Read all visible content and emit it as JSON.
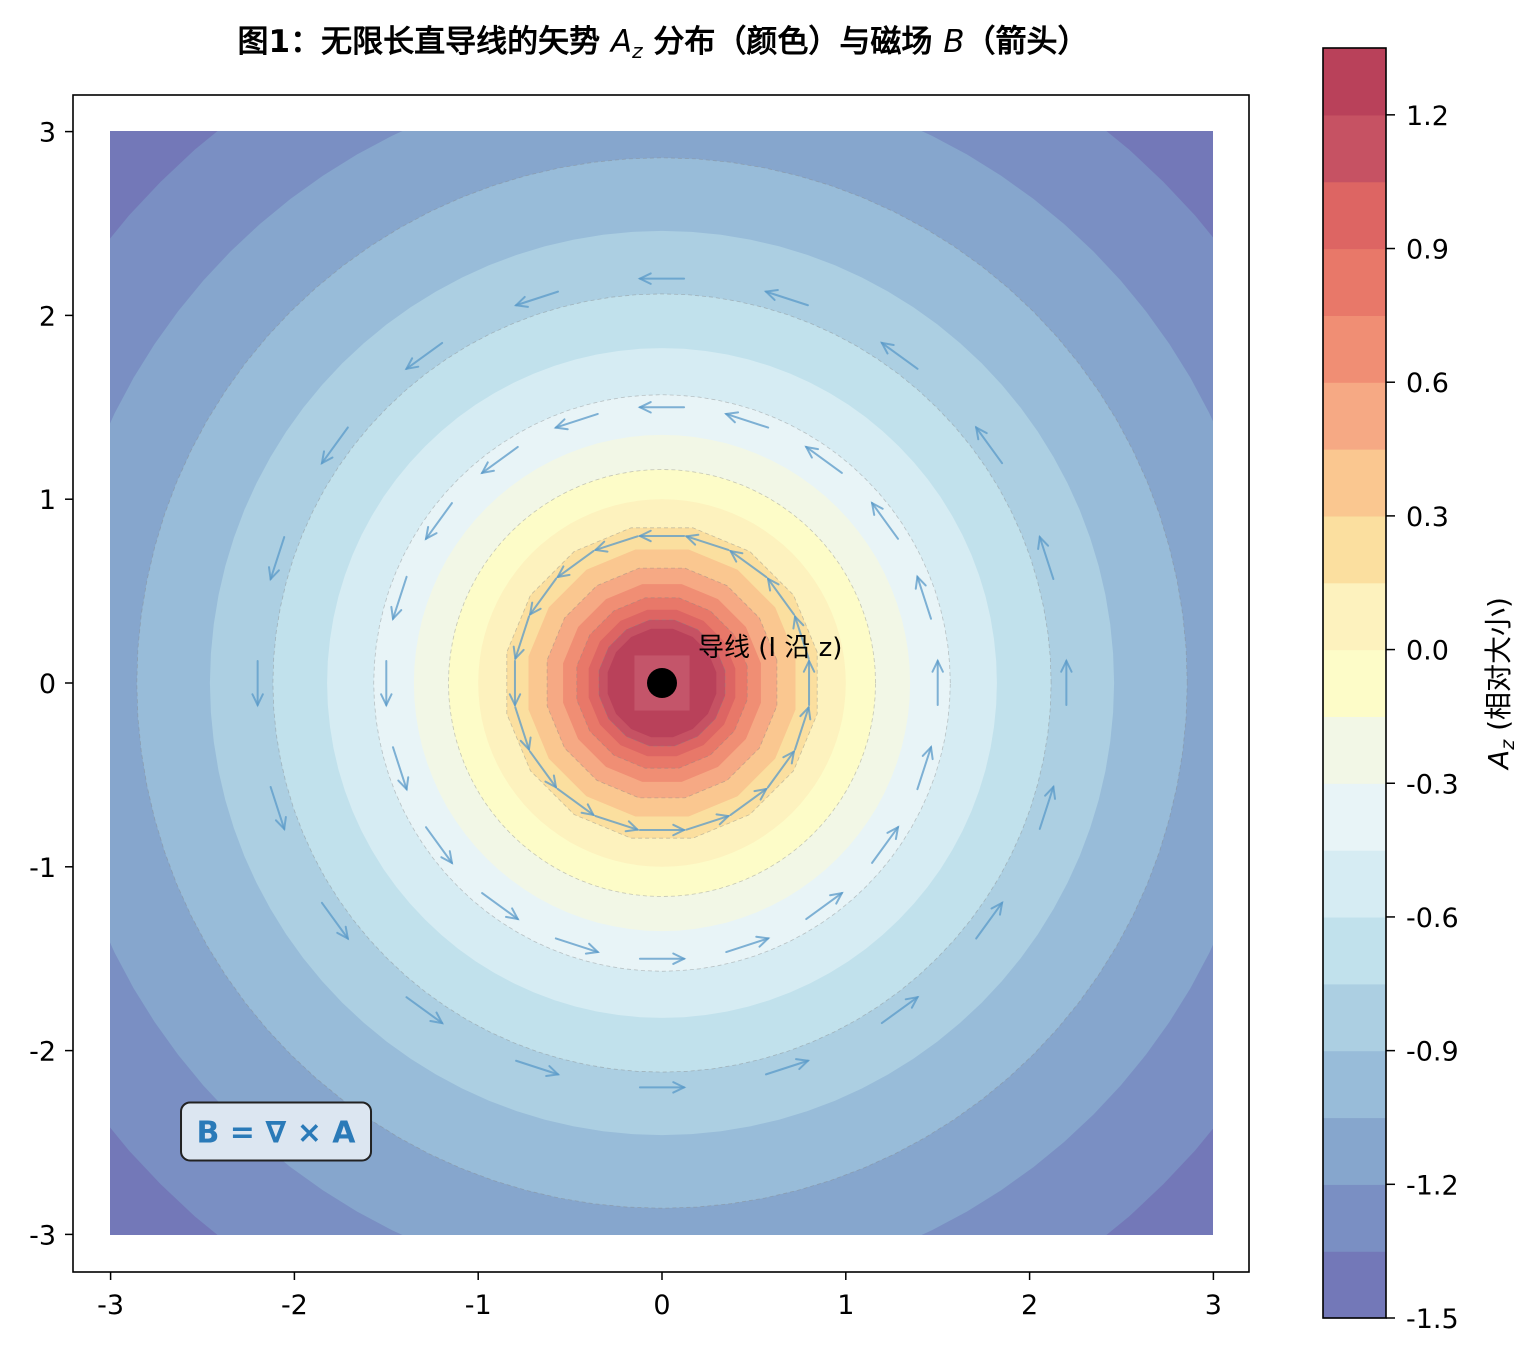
{
  "chart_data": {
    "type": "heatmap",
    "title": "图1：无限长直导线的矢势 A_z 分布（颜色）与磁场 B（箭头）",
    "title_parts": {
      "before": "图1：无限长直导线的矢势 ",
      "symbol": "A",
      "symbol_sub": "z",
      "middle": " 分布（颜色）与磁场 ",
      "symbol2": "B",
      "after": "（箭头）"
    },
    "xlim": [
      -3.2,
      3.2
    ],
    "ylim": [
      -3.2,
      3.2
    ],
    "data_extent": [
      -3,
      3
    ],
    "x_ticks": [
      -3,
      -2,
      -1,
      0,
      1,
      2,
      3
    ],
    "y_ticks": [
      -3,
      -2,
      -1,
      0,
      1,
      2,
      3
    ],
    "x_tick_labels": [
      "-3",
      "-2",
      "-1",
      "0",
      "1",
      "2",
      "3"
    ],
    "y_tick_labels": [
      "-3",
      "-2",
      "-1",
      "0",
      "1",
      "2",
      "3"
    ],
    "colorbar": {
      "label": "A_z (相对大小)",
      "label_symbol": "A",
      "label_sub": "z",
      "label_rest": " (相对大小)",
      "range": [
        -1.5,
        1.35
      ],
      "levels": [
        -1.5,
        -1.35,
        -1.2,
        -1.05,
        -0.9,
        -0.75,
        -0.6,
        -0.45,
        -0.3,
        -0.15,
        0.0,
        0.15,
        0.3,
        0.45,
        0.6,
        0.75,
        0.9,
        1.05,
        1.2,
        1.35
      ],
      "colors": [
        "#7378b8",
        "#7a8fc3",
        "#86a6cd",
        "#98bcd9",
        "#accfe2",
        "#c1e1ec",
        "#d6ecf3",
        "#e8f4f7",
        "#f2f7e6",
        "#fdfcc8",
        "#fdf2be",
        "#fbdf9f",
        "#fac790",
        "#f6a984",
        "#f08e74",
        "#e87869",
        "#dd6563",
        "#c65263",
        "#b9415a"
      ],
      "ticks": [
        -1.5,
        -1.2,
        -0.9,
        -0.6,
        -0.3,
        0.0,
        0.3,
        0.6,
        0.9,
        1.2
      ],
      "tick_labels": [
        "-1.5",
        "-1.2",
        "-0.9",
        "-0.6",
        "-0.3",
        "0.0",
        "0.3",
        "0.6",
        "0.9",
        "1.2"
      ]
    },
    "field": {
      "formula": "A_z = -ln(r), clipped at r_min = 0.3, max 1.2",
      "arrow_radii": [
        0.8,
        1.5,
        2.2
      ],
      "arrows_per_ring": [
        20,
        20,
        20
      ],
      "arrow_color": "#5a9ac8",
      "direction": "counter-clockwise"
    },
    "wire": {
      "x": 0,
      "y": 0,
      "label": "导线 (I 沿 z)"
    },
    "formula_box": {
      "text": "B = ∇ × A",
      "x": -2.1,
      "y": -2.44
    }
  }
}
